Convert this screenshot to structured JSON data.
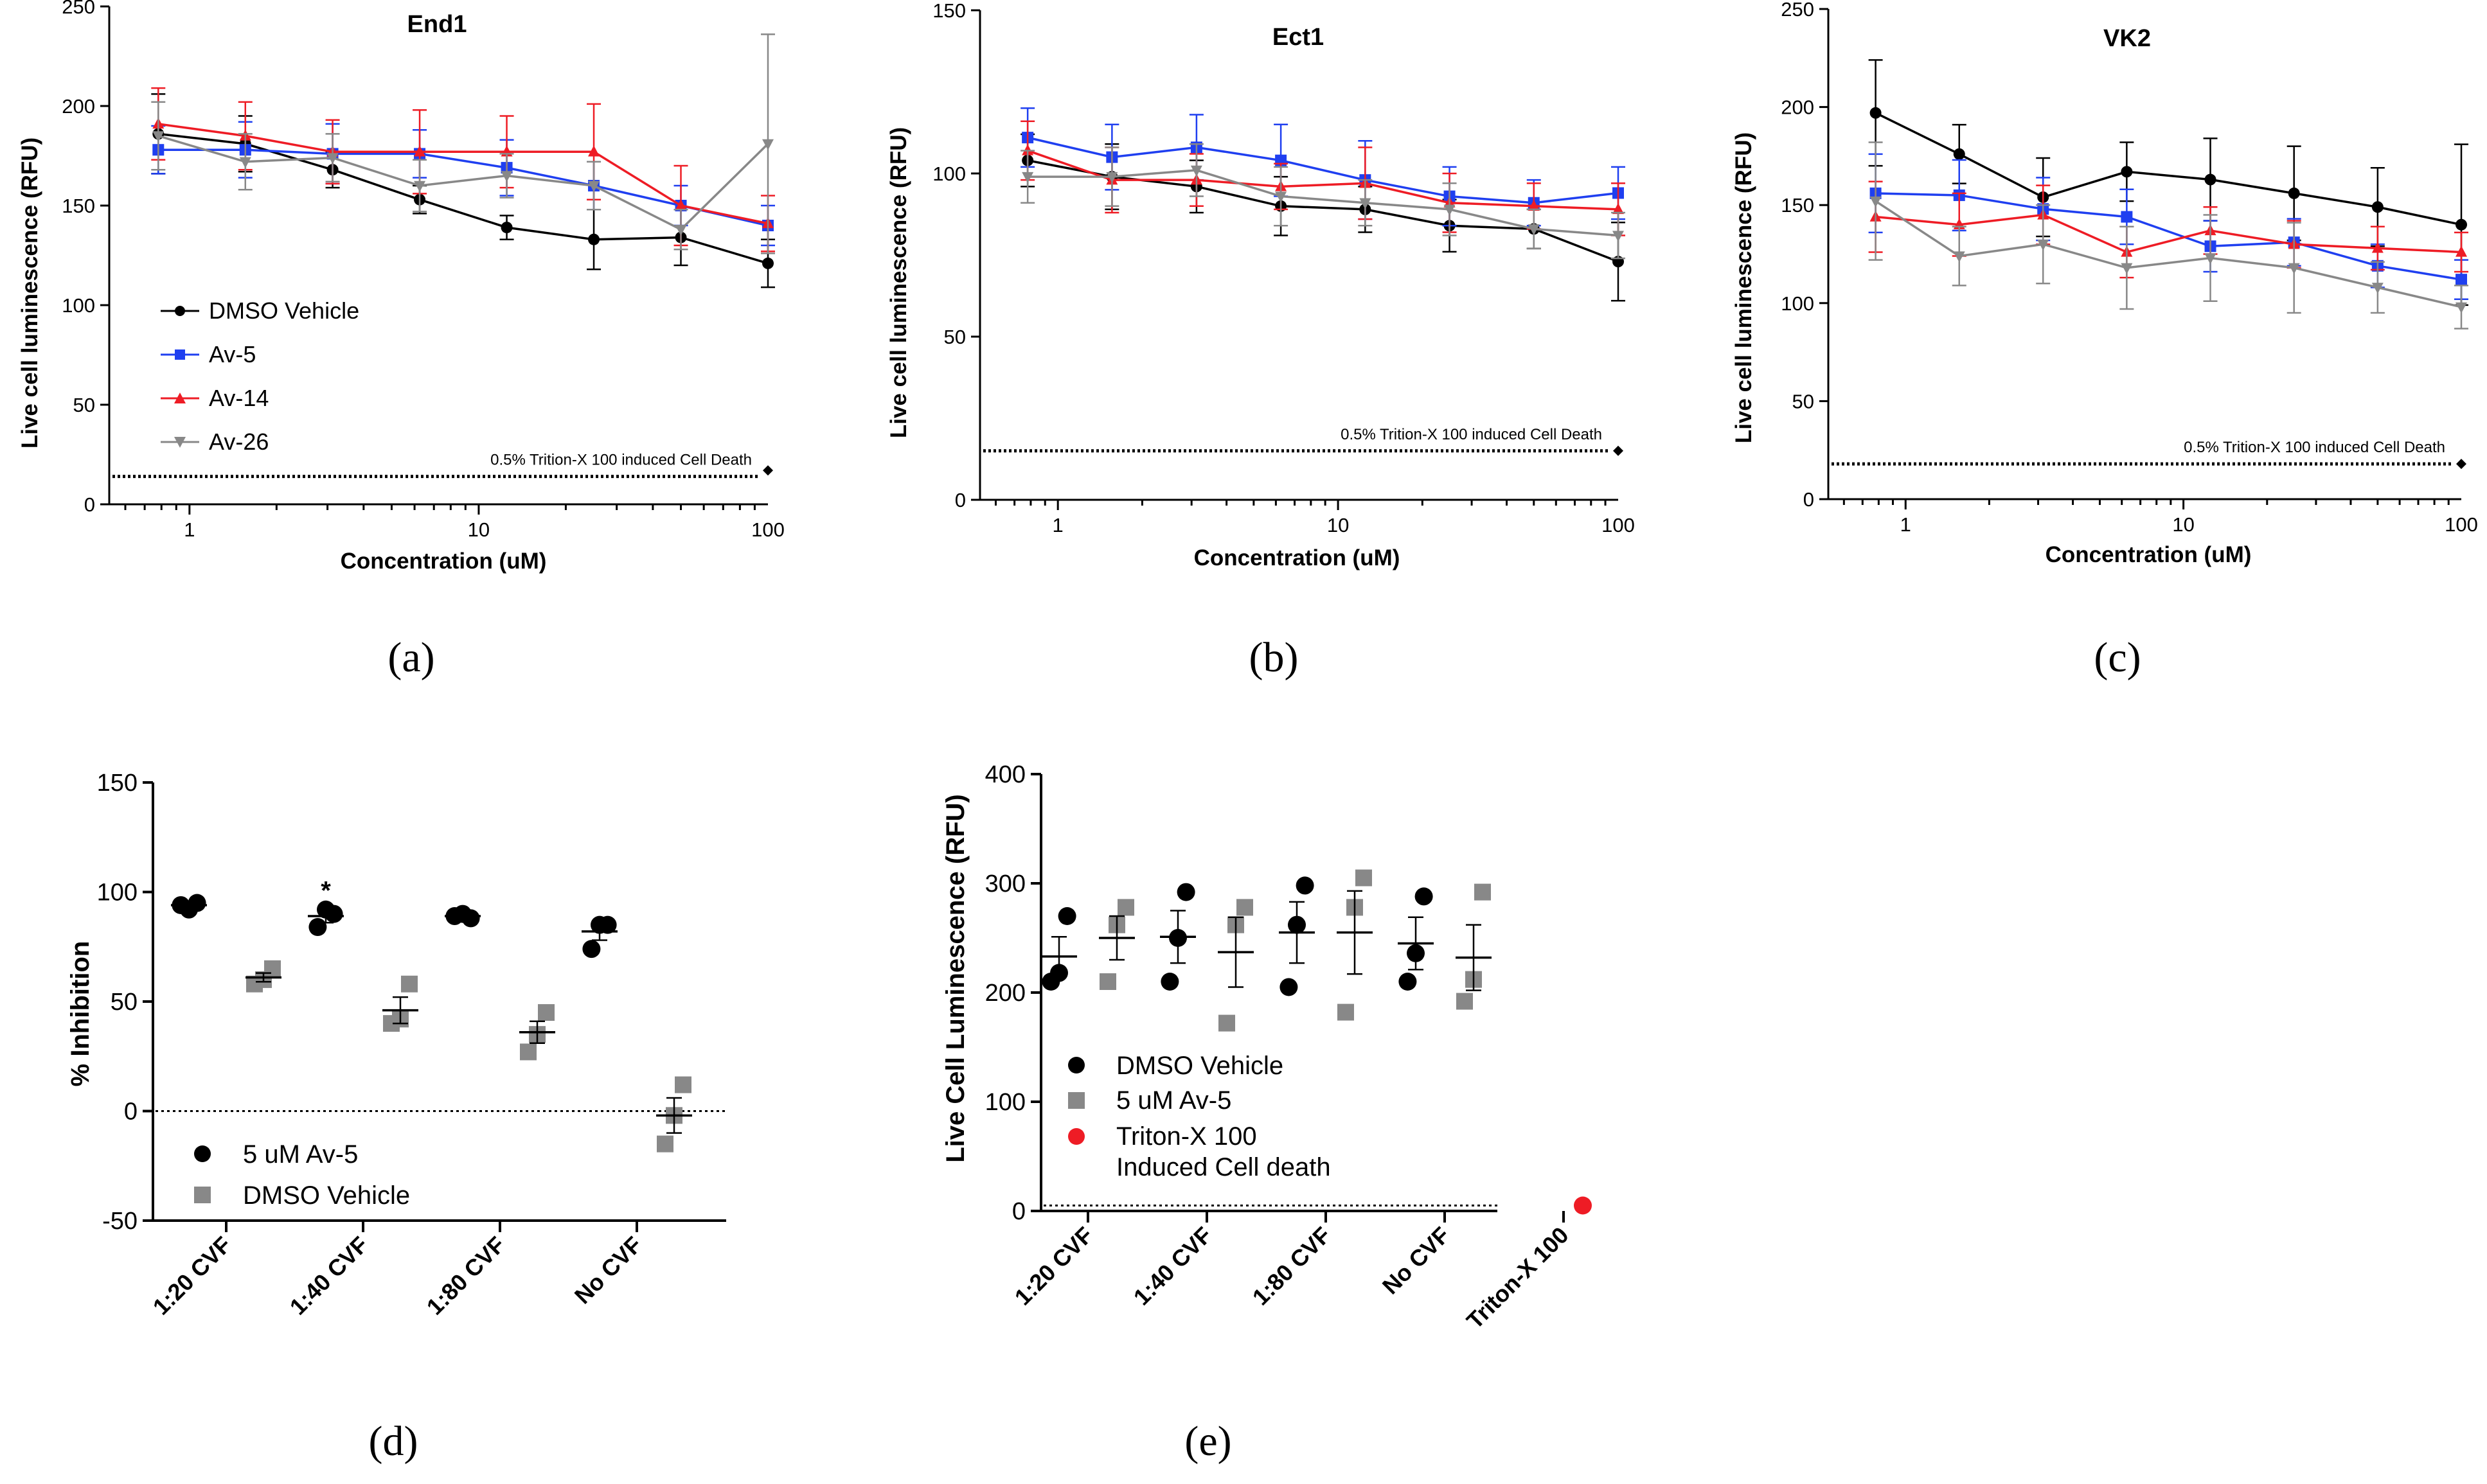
{
  "figure_captions": [
    "(a)",
    "(b)",
    "(c)",
    "(d)",
    "(e)"
  ],
  "chart_data": [
    {
      "id": "a",
      "type": "line",
      "title": "End1",
      "xlabel": "Concentration (uM)",
      "ylabel": "Live cell luminescence (RFU)",
      "xscale": "log",
      "xlim": [
        0.5,
        100
      ],
      "ylim": [
        0,
        250
      ],
      "yticks": [
        0,
        50,
        100,
        150,
        200,
        250
      ],
      "xticks": [
        1,
        10,
        100
      ],
      "x": [
        0.78,
        1.56,
        3.125,
        6.25,
        12.5,
        25,
        50,
        100
      ],
      "legend_position": "left",
      "series": [
        {
          "name": "DMSO Vehicle",
          "color": "#000000",
          "marker": "circle",
          "values": [
            186,
            181,
            168,
            153,
            139,
            133,
            134,
            121
          ],
          "errors": [
            20,
            14,
            9,
            7,
            6,
            15,
            14,
            12
          ]
        },
        {
          "name": "Av-5",
          "color": "#1f3ff0",
          "marker": "square",
          "values": [
            178,
            178,
            176,
            176,
            169,
            160,
            150,
            140
          ],
          "errors": [
            12,
            14,
            15,
            12,
            14,
            12,
            10,
            10
          ]
        },
        {
          "name": "Av-14",
          "color": "#ee1c25",
          "marker": "triangle-up",
          "values": [
            191,
            185,
            177,
            177,
            177,
            177,
            150,
            141
          ],
          "errors": [
            18,
            17,
            16,
            21,
            18,
            24,
            20,
            14
          ]
        },
        {
          "name": "Av-26",
          "color": "#888888",
          "marker": "triangle-down",
          "values": [
            185,
            172,
            174,
            160,
            165,
            160,
            138,
            181
          ],
          "errors": [
            17,
            14,
            12,
            13,
            11,
            12,
            10,
            55
          ]
        }
      ],
      "baseline": {
        "label": "0.5% Trition-X 100 induced Cell Death",
        "value": 14,
        "end_value": 17
      }
    },
    {
      "id": "b",
      "type": "line",
      "title": "Ect1",
      "xlabel": "Concentration (uM)",
      "ylabel": "Live cell luminescence (RFU)",
      "xscale": "log",
      "xlim": [
        0.5,
        100
      ],
      "ylim": [
        0,
        150
      ],
      "yticks": [
        0,
        50,
        100,
        150
      ],
      "xticks": [
        1,
        10,
        100
      ],
      "x": [
        0.78,
        1.56,
        3.125,
        6.25,
        12.5,
        25,
        50,
        100
      ],
      "series": [
        {
          "name": "DMSO Vehicle",
          "color": "#000000",
          "marker": "circle",
          "values": [
            104,
            99,
            96,
            90,
            89,
            84,
            83,
            73
          ],
          "errors": [
            8,
            10,
            8,
            9,
            7,
            8,
            6,
            12
          ]
        },
        {
          "name": "Av-5",
          "color": "#1f3ff0",
          "marker": "square",
          "values": [
            111,
            105,
            108,
            104,
            98,
            93,
            91,
            94
          ],
          "errors": [
            9,
            10,
            10,
            11,
            12,
            9,
            7,
            8
          ]
        },
        {
          "name": "Av-14",
          "color": "#ee1c25",
          "marker": "triangle-up",
          "values": [
            107,
            98,
            98,
            96,
            97,
            91,
            90,
            89
          ],
          "errors": [
            9,
            10,
            8,
            7,
            11,
            9,
            7,
            8
          ]
        },
        {
          "name": "Av-26",
          "color": "#888888",
          "marker": "triangle-down",
          "values": [
            99,
            99,
            101,
            93,
            91,
            89,
            83,
            81
          ],
          "errors": [
            8,
            9,
            8,
            9,
            7,
            8,
            6,
            7
          ]
        }
      ],
      "baseline": {
        "label": "0.5% Trition-X 100 induced Cell Death",
        "value": 15,
        "end_value": 15
      }
    },
    {
      "id": "c",
      "type": "line",
      "title": "VK2",
      "xlabel": "Concentration (uM)",
      "ylabel": "Live cell luminescence (RFU)",
      "xscale": "log",
      "xlim": [
        0.5,
        100
      ],
      "ylim": [
        0,
        250
      ],
      "yticks": [
        0,
        50,
        100,
        150,
        200,
        250
      ],
      "xticks": [
        1,
        10,
        100
      ],
      "x": [
        0.78,
        1.56,
        3.125,
        6.25,
        12.5,
        25,
        50,
        100
      ],
      "series": [
        {
          "name": "DMSO Vehicle",
          "color": "#000000",
          "marker": "circle",
          "values": [
            197,
            176,
            154,
            167,
            163,
            156,
            149,
            140
          ],
          "errors": [
            27,
            15,
            20,
            15,
            21,
            24,
            20,
            41
          ]
        },
        {
          "name": "Av-5",
          "color": "#1f3ff0",
          "marker": "square",
          "values": [
            156,
            155,
            148,
            144,
            129,
            131,
            119,
            112
          ],
          "errors": [
            20,
            18,
            16,
            14,
            13,
            12,
            11,
            10
          ]
        },
        {
          "name": "Av-14",
          "color": "#ee1c25",
          "marker": "triangle-up",
          "values": [
            144,
            140,
            145,
            126,
            137,
            130,
            128,
            126
          ],
          "errors": [
            18,
            16,
            15,
            13,
            12,
            12,
            11,
            10
          ]
        },
        {
          "name": "Av-26",
          "color": "#888888",
          "marker": "triangle-down",
          "values": [
            152,
            124,
            130,
            118,
            123,
            118,
            108,
            98
          ],
          "errors": [
            30,
            15,
            20,
            21,
            22,
            23,
            13,
            11
          ]
        }
      ],
      "baseline": {
        "label": "0.5% Trition-X 100 induced Cell Death",
        "value": 18,
        "end_value": 18
      }
    },
    {
      "id": "d",
      "type": "scatter",
      "xlabel": "",
      "ylabel": "% Inhibition",
      "ylim": [
        -50,
        150
      ],
      "yticks": [
        -50,
        0,
        50,
        100,
        150
      ],
      "categories": [
        "1:20 CVF",
        "1:40 CVF",
        "1:80 CVF",
        "No CVF"
      ],
      "annotation": {
        "text": "*",
        "category": "1:40 CVF",
        "value": 95
      },
      "legend_position": "bottom-left",
      "series": [
        {
          "name": "5 uM Av-5",
          "color": "#000000",
          "marker": "circle",
          "points": [
            [
              94,
              92,
              95
            ],
            [
              84,
              92,
              90
            ],
            [
              89,
              90,
              88
            ],
            [
              74,
              85,
              85
            ]
          ],
          "means": [
            94,
            89,
            89,
            82
          ],
          "errors": [
            1,
            3,
            1,
            4
          ]
        },
        {
          "name": "DMSO Vehicle",
          "color": "#888888",
          "marker": "square",
          "points": [
            [
              58,
              60,
              65
            ],
            [
              40,
              42,
              58
            ],
            [
              27,
              35,
              45
            ],
            [
              -15,
              -2,
              12
            ]
          ],
          "means": [
            61,
            46,
            36,
            -2
          ],
          "errors": [
            2,
            6,
            5,
            8
          ]
        }
      ],
      "reference_line": 0
    },
    {
      "id": "e",
      "type": "scatter",
      "xlabel": "",
      "ylabel": "Live Cell Luminescence (RFU)",
      "ylim": [
        0,
        400
      ],
      "yticks": [
        0,
        100,
        200,
        300,
        400
      ],
      "categories": [
        "1:20 CVF",
        "1:40 CVF",
        "1:80 CVF",
        "No CVF",
        "Triton-X 100"
      ],
      "legend_position": "bottom-left",
      "series": [
        {
          "name": "DMSO Vehicle",
          "color": "#000000",
          "marker": "circle",
          "points": [
            [
              210,
              218,
              270
            ],
            [
              210,
              250,
              292
            ],
            [
              205,
              262,
              298
            ],
            [
              210,
              236,
              288
            ]
          ],
          "means": [
            233,
            251,
            255,
            245
          ],
          "errors": [
            18,
            24,
            28,
            24
          ]
        },
        {
          "name": "5 uM Av-5",
          "color": "#888888",
          "marker": "square",
          "points": [
            [
              210,
              262,
              278
            ],
            [
              172,
              262,
              278
            ],
            [
              182,
              278,
              305
            ],
            [
              192,
              212,
              292
            ]
          ],
          "means": [
            250,
            237,
            255,
            232
          ],
          "errors": [
            20,
            32,
            38,
            30
          ]
        },
        {
          "name": "Triton-X 100 Induced Cell death",
          "legend_lines": [
            "Triton-X 100",
            "Induced Cell death"
          ],
          "color": "#ee1c25",
          "marker": "circle",
          "points": [
            [
              5
            ]
          ],
          "category": "Triton-X 100"
        }
      ],
      "reference_line": 5
    }
  ]
}
